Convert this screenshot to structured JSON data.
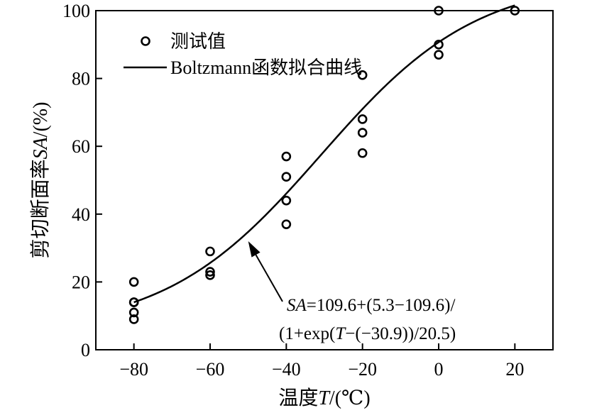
{
  "chart_data": {
    "type": "scatter",
    "xlabel_prefix": "温度",
    "xlabel_var": "T",
    "xlabel_suffix": "/(℃)",
    "ylabel_prefix": "剪切断面率",
    "ylabel_var": "SA",
    "ylabel_suffix": "/(%)",
    "xlim": [
      -90,
      30
    ],
    "ylim": [
      0,
      100
    ],
    "xticks": [
      -80,
      -60,
      -40,
      -20,
      0,
      20
    ],
    "xtick_labels": [
      "−80",
      "−60",
      "−40",
      "−20",
      "0",
      "20"
    ],
    "yticks": [
      0,
      20,
      40,
      60,
      80,
      100
    ],
    "ytick_labels": [
      "0",
      "20",
      "40",
      "60",
      "80",
      "100"
    ],
    "grid": false,
    "legend_position": "top-left",
    "series": [
      {
        "name": "测试值",
        "marker": "open-circle",
        "x": [
          -80,
          -80,
          -80,
          -80,
          -80,
          -60,
          -60,
          -60,
          -40,
          -40,
          -40,
          -40,
          -20,
          -20,
          -20,
          -20,
          0,
          0,
          0,
          20
        ],
        "y": [
          20,
          14,
          11,
          9,
          14,
          29,
          23,
          22,
          57,
          51,
          44,
          37,
          81,
          68,
          64,
          58,
          100,
          90,
          87,
          100
        ]
      },
      {
        "name": "Boltzmann函数拟合曲线",
        "marker": "line",
        "model": "boltzmann",
        "A1": 5.3,
        "A2": 109.6,
        "x0": -30.9,
        "dx": 20.5,
        "x_range": [
          -80,
          20
        ]
      }
    ],
    "annotation": {
      "line1_var": "SA",
      "line1_rest": "=109.6+(5.3−109.6)/",
      "line2_a": "(1+exp(",
      "line2_var": "T",
      "line2_b": "−(−30.9))/20.5)",
      "arrow_target": [
        -50,
        32
      ]
    }
  }
}
